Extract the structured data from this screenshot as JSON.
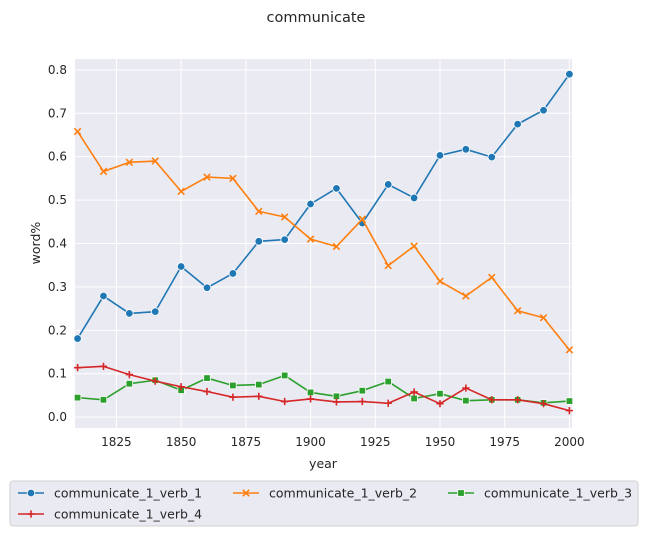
{
  "chart_data": {
    "type": "line",
    "title": "communicate",
    "xlabel": "year",
    "ylabel": "word%",
    "xlim": [
      1809,
      2001
    ],
    "ylim": [
      -0.025,
      0.825
    ],
    "xticks": [
      1825,
      1850,
      1875,
      1900,
      1925,
      1950,
      1975,
      2000
    ],
    "yticks": [
      0.0,
      0.1,
      0.2,
      0.3,
      0.4,
      0.5,
      0.6,
      0.7,
      0.8
    ],
    "ytick_labels": [
      "0.0",
      "0.1",
      "0.2",
      "0.3",
      "0.4",
      "0.5",
      "0.6",
      "0.7",
      "0.8"
    ],
    "grid": true,
    "legend_position": "bottom",
    "x": [
      1810,
      1820,
      1830,
      1840,
      1850,
      1860,
      1870,
      1880,
      1890,
      1900,
      1910,
      1920,
      1930,
      1940,
      1950,
      1960,
      1970,
      1980,
      1990,
      2000
    ],
    "series": [
      {
        "name": "communicate_1_verb_1",
        "color": "#1f77b4",
        "marker": "circle",
        "values": [
          0.181,
          0.279,
          0.239,
          0.243,
          0.347,
          0.298,
          0.331,
          0.405,
          0.409,
          0.491,
          0.527,
          0.447,
          0.536,
          0.505,
          0.603,
          0.617,
          0.599,
          0.675,
          0.707,
          0.79
        ]
      },
      {
        "name": "communicate_1_verb_2",
        "color": "#ff7f0e",
        "marker": "x",
        "values": [
          0.658,
          0.566,
          0.587,
          0.59,
          0.52,
          0.553,
          0.55,
          0.474,
          0.461,
          0.41,
          0.393,
          0.456,
          0.349,
          0.394,
          0.313,
          0.279,
          0.322,
          0.245,
          0.229,
          0.155
        ]
      },
      {
        "name": "communicate_1_verb_3",
        "color": "#2ca02c",
        "marker": "square",
        "values": [
          0.045,
          0.04,
          0.077,
          0.085,
          0.062,
          0.09,
          0.073,
          0.075,
          0.096,
          0.057,
          0.048,
          0.061,
          0.082,
          0.043,
          0.054,
          0.038,
          0.04,
          0.04,
          0.033,
          0.037
        ]
      },
      {
        "name": "communicate_1_verb_4",
        "color": "#d62728",
        "marker": "plus",
        "values": [
          0.114,
          0.117,
          0.098,
          0.083,
          0.07,
          0.059,
          0.046,
          0.048,
          0.036,
          0.042,
          0.035,
          0.036,
          0.032,
          0.058,
          0.031,
          0.067,
          0.04,
          0.04,
          0.031,
          0.015
        ]
      }
    ]
  }
}
